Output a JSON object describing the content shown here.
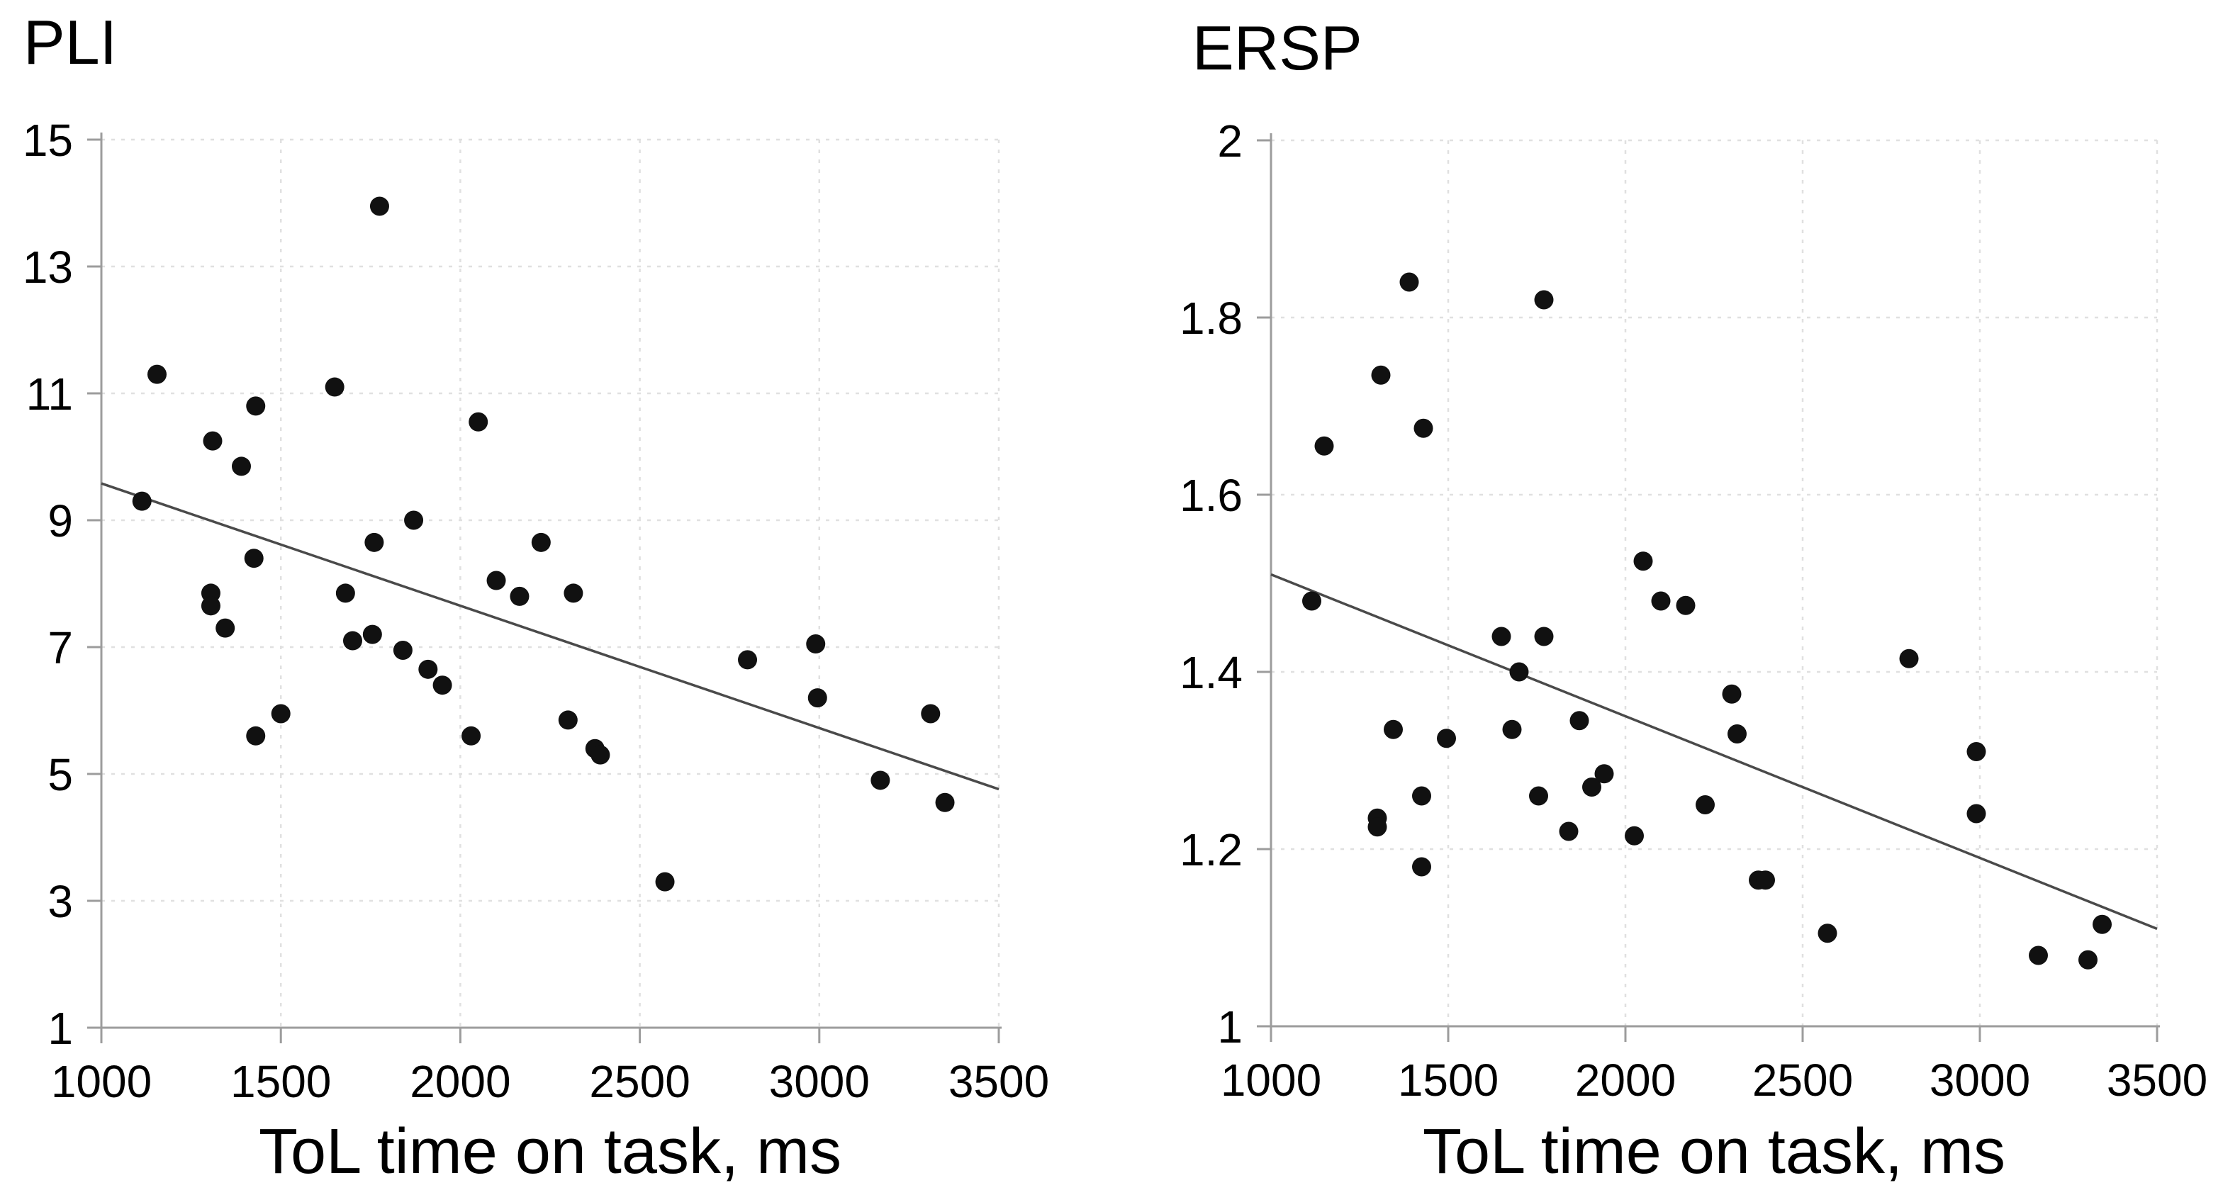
{
  "figure": {
    "background": "#ffffff",
    "point_color": "#111111",
    "grid_color": "#e0e0e0",
    "axis_color": "#9c9c9c",
    "trend_color": "#4a4a4a",
    "text_color": "#000000"
  },
  "chart_data": [
    {
      "type": "scatter",
      "title": "PLI",
      "xlabel": "ToL time on task, ms",
      "ylabel": "",
      "xlim": [
        1000,
        3500
      ],
      "ylim": [
        1,
        15
      ],
      "xticks": [
        1000,
        1500,
        2000,
        2500,
        3000,
        3500
      ],
      "yticks": [
        15,
        13,
        11,
        9,
        7,
        5,
        3,
        1
      ],
      "grid": true,
      "legend": "none",
      "marker": {
        "shape": "circle",
        "radius": 13.5
      },
      "points": [
        [
          1113,
          9.3
        ],
        [
          1155,
          11.3
        ],
        [
          1305,
          7.85
        ],
        [
          1305,
          7.65
        ],
        [
          1310,
          10.25
        ],
        [
          1345,
          7.3
        ],
        [
          1390,
          9.85
        ],
        [
          1425,
          8.4
        ],
        [
          1430,
          10.8
        ],
        [
          1430,
          5.6
        ],
        [
          1500,
          5.95
        ],
        [
          1650,
          11.1
        ],
        [
          1680,
          7.85
        ],
        [
          1700,
          7.1
        ],
        [
          1755,
          7.2
        ],
        [
          1760,
          8.65
        ],
        [
          1775,
          13.95
        ],
        [
          1840,
          6.95
        ],
        [
          1870,
          9.0
        ],
        [
          1910,
          6.65
        ],
        [
          1950,
          6.4
        ],
        [
          2030,
          5.6
        ],
        [
          2050,
          10.55
        ],
        [
          2100,
          8.05
        ],
        [
          2165,
          7.8
        ],
        [
          2225,
          8.65
        ],
        [
          2300,
          5.85
        ],
        [
          2315,
          7.85
        ],
        [
          2375,
          5.4
        ],
        [
          2390,
          5.3
        ],
        [
          2570,
          3.3
        ],
        [
          2800,
          6.8
        ],
        [
          2990,
          7.05
        ],
        [
          2995,
          6.2
        ],
        [
          3170,
          4.9
        ],
        [
          3310,
          5.95
        ],
        [
          3350,
          4.55
        ]
      ],
      "trendline": {
        "x": [
          1000,
          3500
        ],
        "y": [
          9.58,
          4.76
        ]
      }
    },
    {
      "type": "scatter",
      "title": "ERSP",
      "xlabel": "ToL time on task, ms",
      "ylabel": "",
      "xlim": [
        1000,
        3500
      ],
      "ylim": [
        1,
        2
      ],
      "xticks": [
        1000,
        1500,
        2000,
        2500,
        3000,
        3500
      ],
      "yticks": [
        2,
        1.8,
        1.6,
        1.4,
        1.2,
        1
      ],
      "grid": true,
      "legend": "none",
      "marker": {
        "shape": "circle",
        "radius": 13.5
      },
      "points": [
        [
          1115,
          1.48
        ],
        [
          1150,
          1.655
        ],
        [
          1300,
          1.235
        ],
        [
          1300,
          1.225
        ],
        [
          1310,
          1.735
        ],
        [
          1345,
          1.335
        ],
        [
          1390,
          1.84
        ],
        [
          1425,
          1.26
        ],
        [
          1425,
          1.18
        ],
        [
          1430,
          1.675
        ],
        [
          1495,
          1.325
        ],
        [
          1650,
          1.44
        ],
        [
          1680,
          1.335
        ],
        [
          1700,
          1.4
        ],
        [
          1755,
          1.26
        ],
        [
          1770,
          1.82
        ],
        [
          1770,
          1.44
        ],
        [
          1840,
          1.22
        ],
        [
          1870,
          1.345
        ],
        [
          1905,
          1.27
        ],
        [
          1940,
          1.285
        ],
        [
          2025,
          1.215
        ],
        [
          2050,
          1.525
        ],
        [
          2100,
          1.48
        ],
        [
          2170,
          1.475
        ],
        [
          2225,
          1.25
        ],
        [
          2300,
          1.375
        ],
        [
          2315,
          1.33
        ],
        [
          2375,
          1.165
        ],
        [
          2395,
          1.165
        ],
        [
          2570,
          1.105
        ],
        [
          2800,
          1.415
        ],
        [
          2990,
          1.31
        ],
        [
          2990,
          1.24
        ],
        [
          3165,
          1.08
        ],
        [
          3305,
          1.075
        ],
        [
          3345,
          1.115
        ]
      ],
      "trendline": {
        "x": [
          1000,
          3500
        ],
        "y": [
          1.51,
          1.11
        ]
      }
    }
  ]
}
